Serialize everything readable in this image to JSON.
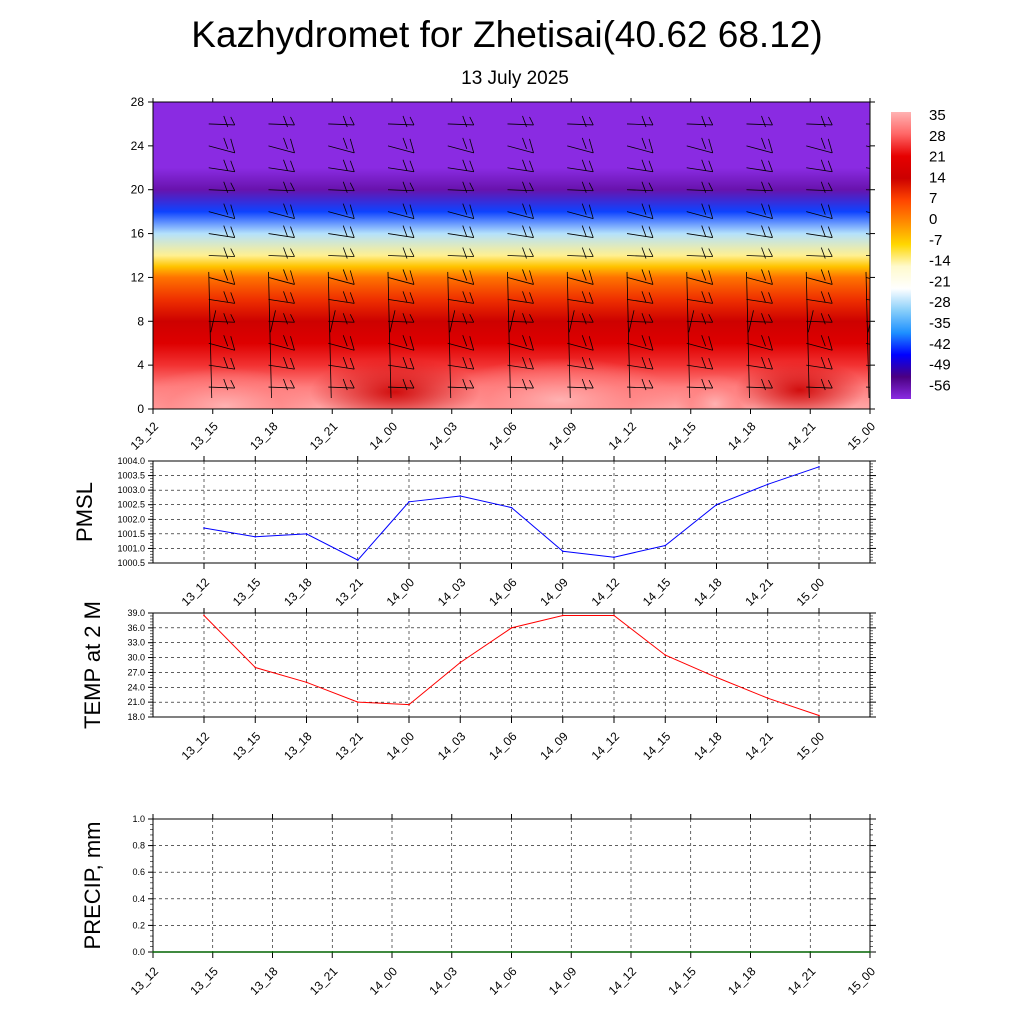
{
  "header": {
    "title": "Kazhydromet for Zhetisai(40.62 68.12)",
    "date": "13 July 2025"
  },
  "colors": {
    "pmsl_line": "#0000ff",
    "temp_line": "#ff0000",
    "precip_line": "#006400",
    "grid": "#000000",
    "cross_section_scale": [
      "#ffb3b3",
      "#ff6666",
      "#e60000",
      "#cc0000",
      "#ff4500",
      "#ff8c00",
      "#ffd700",
      "#fffacd",
      "#ffffff",
      "#87cefa",
      "#1e90ff",
      "#0000ff",
      "#4b0082",
      "#8a2be2"
    ]
  },
  "chart_data": [
    {
      "id": "cross_section",
      "type": "heatmap",
      "title": "",
      "xlabel": "",
      "ylabel": "",
      "x": [
        "13_12",
        "13_15",
        "13_18",
        "13_21",
        "14_00",
        "14_03",
        "14_06",
        "14_09",
        "14_12",
        "14_15",
        "14_18",
        "14_21",
        "15_00"
      ],
      "yticks": [
        0,
        4,
        8,
        12,
        16,
        20,
        24,
        28
      ],
      "ylim": [
        0,
        28
      ],
      "colorbar": {
        "labels": [
          "35",
          "28",
          "21",
          "14",
          "7",
          "0",
          "-7",
          "-14",
          "-21",
          "-28",
          "-35",
          "-42",
          "-49",
          "-56"
        ],
        "values": [
          35,
          28,
          21,
          14,
          7,
          0,
          -7,
          -14,
          -21,
          -28,
          -35,
          -42,
          -49,
          -56
        ]
      },
      "temperature_profile": {
        "levels": [
          0,
          2,
          4,
          6,
          8,
          10,
          12,
          13,
          14,
          16,
          18,
          20,
          22,
          24,
          28
        ],
        "values": [
          34,
          30,
          24,
          18,
          13,
          8,
          1,
          -7,
          -14,
          -28,
          -42,
          -56,
          -60,
          -60,
          -60
        ]
      },
      "wind_barbs": true
    },
    {
      "id": "pmsl",
      "type": "line",
      "ylabel": "PMSL",
      "x": [
        "13_12",
        "13_15",
        "13_18",
        "13_21",
        "14_00",
        "14_03",
        "14_06",
        "14_09",
        "14_12",
        "14_15",
        "14_18",
        "14_21",
        "15_00"
      ],
      "yticks": [
        "1000.5",
        "1001.0",
        "1001.5",
        "1002.0",
        "1002.5",
        "1003.0",
        "1003.5",
        "1004.0"
      ],
      "ylim": [
        1000.5,
        1004.0
      ],
      "series": [
        {
          "values": [
            1001.7,
            1001.4,
            1001.5,
            1000.6,
            1002.6,
            1002.8,
            1002.4,
            1000.9,
            1000.7,
            1001.1,
            1002.5,
            1003.2,
            1003.8
          ]
        }
      ],
      "grid": true
    },
    {
      "id": "temp",
      "type": "line",
      "ylabel": "TEMP at 2 M",
      "x": [
        "13_12",
        "13_15",
        "13_18",
        "13_21",
        "14_00",
        "14_03",
        "14_06",
        "14_09",
        "14_12",
        "14_15",
        "14_18",
        "14_21",
        "15_00"
      ],
      "yticks": [
        "18.0",
        "21.0",
        "24.0",
        "27.0",
        "30.0",
        "33.0",
        "36.0",
        "39.0"
      ],
      "ylim": [
        18,
        39
      ],
      "series": [
        {
          "values": [
            38.5,
            28.0,
            25.0,
            21.0,
            20.5,
            29.0,
            36.0,
            38.5,
            38.5,
            30.5,
            26.0,
            21.8,
            18.3
          ]
        }
      ],
      "grid": true
    },
    {
      "id": "precip",
      "type": "line",
      "ylabel": "PRECIP, mm",
      "x": [
        "13_12",
        "13_15",
        "13_18",
        "13_21",
        "14_00",
        "14_03",
        "14_06",
        "14_09",
        "14_12",
        "14_15",
        "14_18",
        "14_21",
        "15_00"
      ],
      "yticks": [
        "0.0",
        "0.2",
        "0.4",
        "0.6",
        "0.8",
        "1.0"
      ],
      "ylim": [
        0,
        1
      ],
      "series": [
        {
          "values": [
            0,
            0,
            0,
            0,
            0,
            0,
            0,
            0,
            0,
            0,
            0,
            0,
            0
          ]
        }
      ],
      "grid": true
    }
  ]
}
